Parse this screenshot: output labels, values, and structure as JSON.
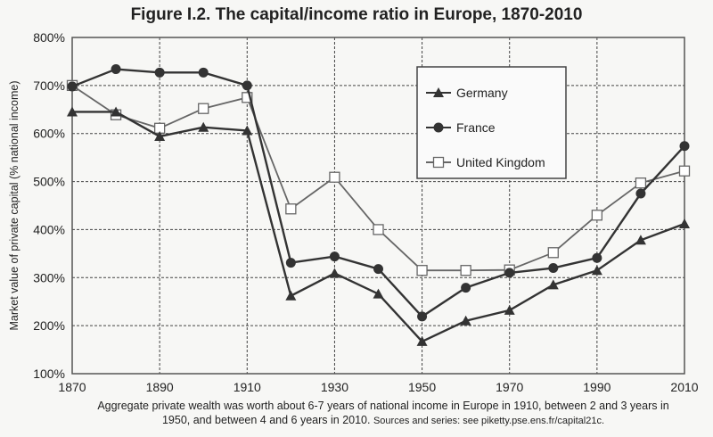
{
  "chart_data": {
    "type": "line",
    "title": "Figure I.2. The capital/income ratio in Europe, 1870-2010",
    "xlabel": "",
    "ylabel": "Market value of private capital (% national income)",
    "x": [
      1870,
      1880,
      1890,
      1900,
      1910,
      1920,
      1930,
      1940,
      1950,
      1960,
      1970,
      1980,
      1990,
      2000,
      2010
    ],
    "xticks": [
      "1870",
      "1890",
      "1910",
      "1930",
      "1950",
      "1970",
      "1990",
      "2010"
    ],
    "yticks": [
      "100%",
      "200%",
      "300%",
      "400%",
      "500%",
      "600%",
      "700%",
      "800%"
    ],
    "ylim": [
      100,
      800
    ],
    "xlim": [
      1870,
      2010
    ],
    "grid": true,
    "legend_position": "top-right",
    "series": [
      {
        "name": "Germany",
        "marker": "triangle",
        "color": "#333333",
        "values": [
          645,
          645,
          594,
          613,
          606,
          262,
          309,
          266,
          167,
          210,
          232,
          285,
          315,
          378,
          412
        ]
      },
      {
        "name": "France",
        "marker": "circle",
        "color": "#333333",
        "values": [
          698,
          734,
          727,
          727,
          700,
          331,
          344,
          318,
          219,
          279,
          310,
          320,
          341,
          475,
          574
        ]
      },
      {
        "name": "United Kingdom",
        "marker": "square",
        "color": "#666666",
        "values": [
          700,
          639,
          611,
          652,
          675,
          443,
          509,
          400,
          315,
          315,
          316,
          352,
          430,
          497,
          522
        ]
      }
    ],
    "caption": "Aggregate private wealth was worth about 6-7 years of national income in Europe in 1910, between 2 and 3 years in 1950, and between 4 and 6 years in 2010.",
    "sources": "Sources and series: see piketty.pse.ens.fr/capital21c."
  }
}
